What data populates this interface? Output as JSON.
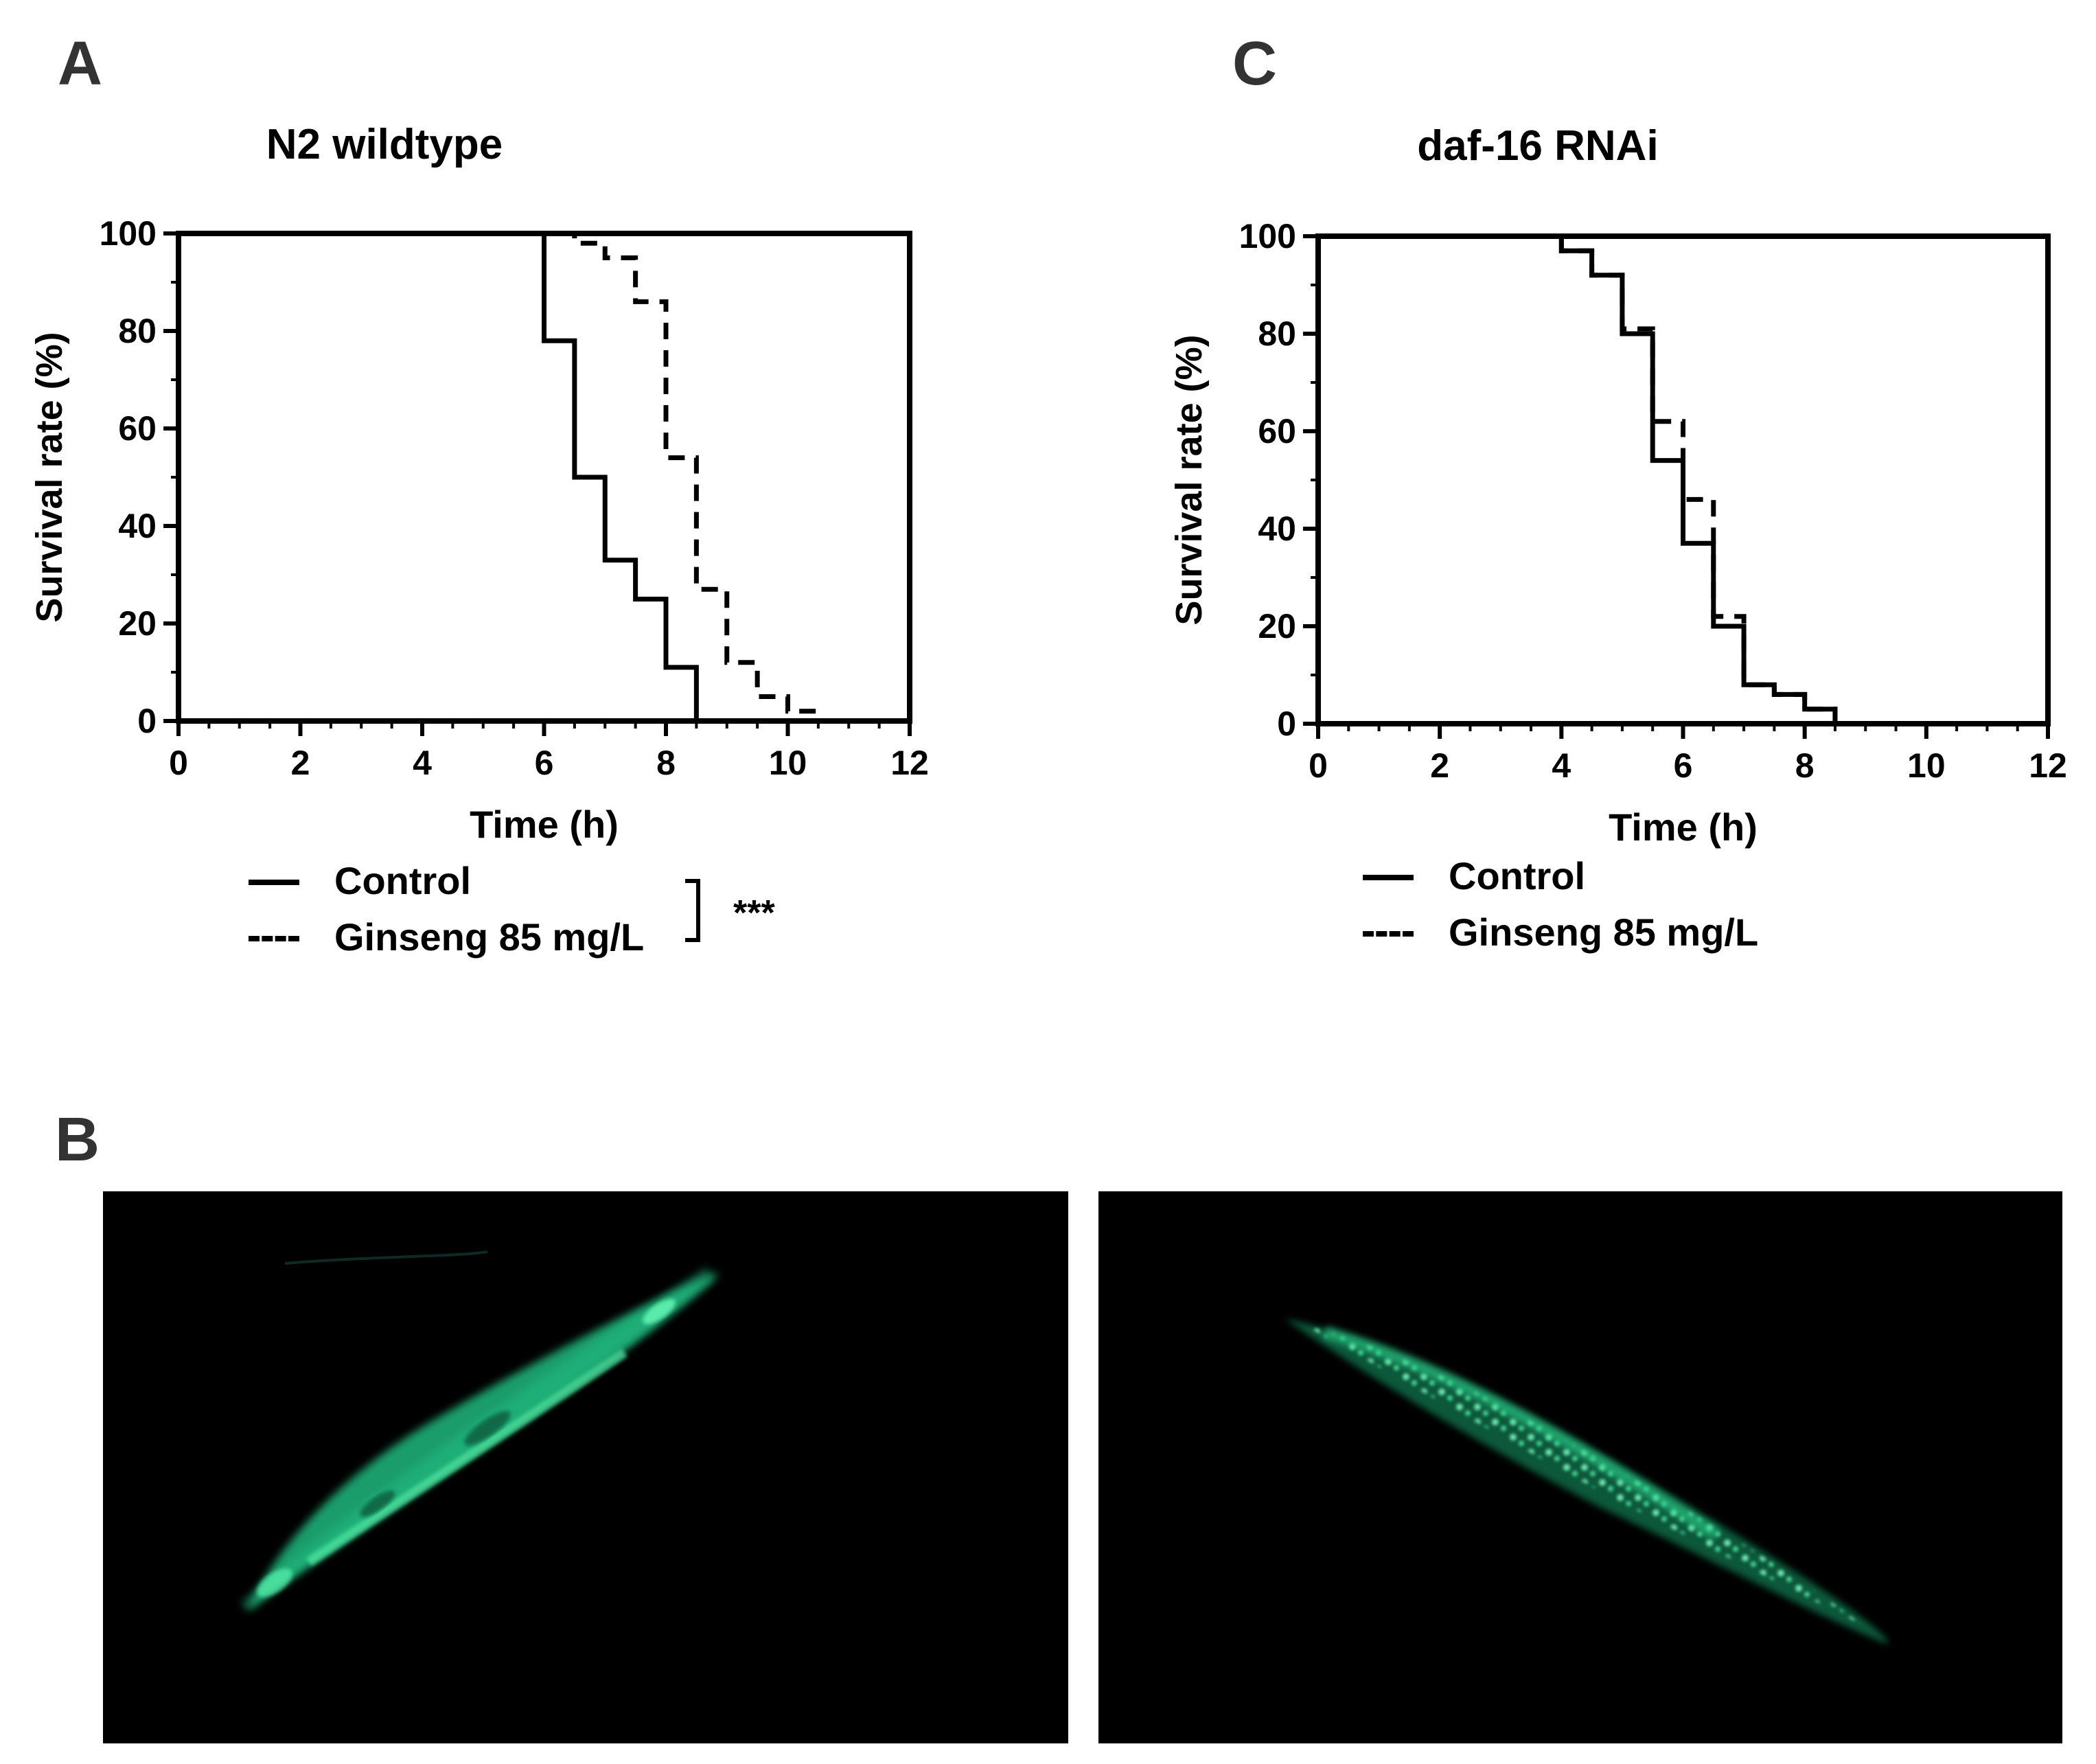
{
  "panels": {
    "a_letter": "A",
    "b_letter": "B",
    "c_letter": "C"
  },
  "chart_data": [
    {
      "type": "line",
      "subtype": "kaplan-meier step",
      "title": "N2 wildtype",
      "xlabel": "Time (h)",
      "ylabel": "Survival rate (%)",
      "xlim": [
        0,
        12
      ],
      "ylim": [
        0,
        100
      ],
      "xticks": [
        0,
        2,
        4,
        6,
        8,
        10,
        12
      ],
      "yticks": [
        0,
        20,
        40,
        60,
        80,
        100
      ],
      "grid": false,
      "legend": "below",
      "series": [
        {
          "name": "Control",
          "style": "solid",
          "x": [
            0,
            6,
            6.5,
            7,
            7.5,
            8,
            8.5
          ],
          "y": [
            100,
            78,
            50,
            33,
            25,
            11,
            0
          ]
        },
        {
          "name": "Ginseng 85 mg/L",
          "style": "dashed",
          "x": [
            0,
            6.5,
            7,
            7.5,
            8,
            8.5,
            9,
            9.5,
            10,
            10.5
          ],
          "y": [
            100,
            98,
            95,
            86,
            54,
            27,
            12,
            5,
            2,
            2
          ]
        }
      ],
      "annotation": "***"
    },
    {
      "type": "line",
      "subtype": "kaplan-meier step",
      "title": "daf-16 RNAi",
      "xlabel": "Time (h)",
      "ylabel": "Survival rate (%)",
      "xlim": [
        0,
        12
      ],
      "ylim": [
        0,
        100
      ],
      "xticks": [
        0,
        2,
        4,
        6,
        8,
        10,
        12
      ],
      "yticks": [
        0,
        20,
        40,
        60,
        80,
        100
      ],
      "grid": false,
      "legend": "below",
      "series": [
        {
          "name": "Control",
          "style": "solid",
          "x": [
            0,
            4,
            4.5,
            5,
            5.5,
            6,
            6.5,
            7,
            7.5,
            8,
            8.5
          ],
          "y": [
            100,
            97,
            92,
            80,
            54,
            37,
            20,
            8,
            6,
            3,
            0
          ]
        },
        {
          "name": "Ginseng 85 mg/L",
          "style": "dashed",
          "x": [
            0,
            4,
            4.5,
            5,
            5.5,
            6,
            6.5,
            7,
            7.5,
            8,
            8.5
          ],
          "y": [
            100,
            97,
            92,
            81,
            62,
            46,
            22,
            8,
            6,
            3,
            0
          ]
        }
      ]
    }
  ]
}
